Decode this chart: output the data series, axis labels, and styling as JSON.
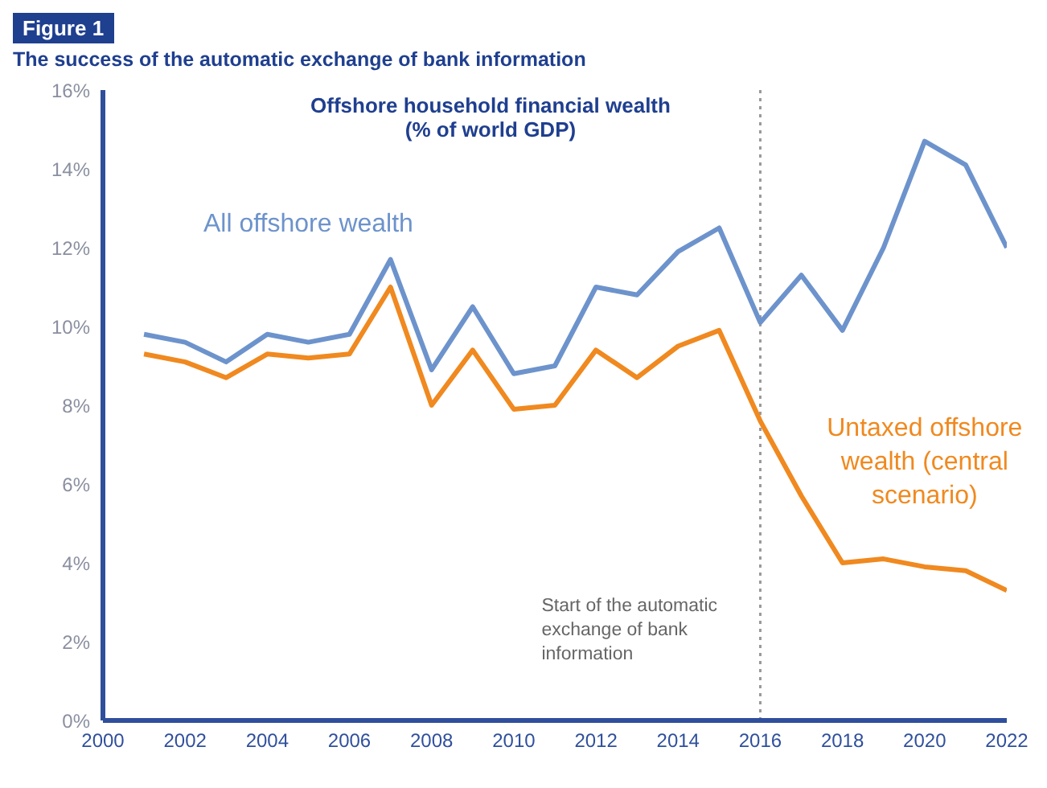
{
  "chart_data": {
    "type": "line",
    "title": "The success of the automatic exchange of bank information",
    "subtitle": "Offshore household financial wealth\n(% of world GDP)",
    "annotations": [
      "Figure 1"
    ],
    "x": [
      2001,
      2002,
      2003,
      2004,
      2005,
      2006,
      2007,
      2008,
      2009,
      2010,
      2011,
      2012,
      2013,
      2014,
      2015,
      2016,
      2017,
      2018,
      2019,
      2020,
      2021,
      2022
    ],
    "series": [
      {
        "name": "All offshore wealth",
        "color": "#6d93cc",
        "values": [
          9.8,
          9.6,
          9.1,
          9.8,
          9.6,
          9.8,
          11.7,
          8.9,
          10.5,
          8.8,
          9.0,
          11.0,
          10.8,
          11.9,
          12.5,
          10.1,
          11.3,
          9.9,
          12.0,
          14.7,
          14.1,
          12.0
        ]
      },
      {
        "name": "Untaxed offshore wealth (central scenario)",
        "color": "#f0891f",
        "values": [
          9.3,
          9.1,
          8.7,
          9.3,
          9.2,
          9.3,
          11.0,
          8.0,
          9.4,
          7.9,
          8.0,
          9.4,
          8.7,
          9.5,
          9.9,
          7.6,
          5.7,
          4.0,
          4.1,
          3.9,
          3.8,
          3.3
        ]
      }
    ],
    "xlim": [
      2000,
      2022
    ],
    "xticks": [
      2000,
      2002,
      2004,
      2006,
      2008,
      2010,
      2012,
      2014,
      2016,
      2018,
      2020,
      2022
    ],
    "ylim": [
      0,
      16
    ],
    "yticks": [
      {
        "value": 0,
        "label": "0%"
      },
      {
        "value": 2,
        "label": "2%"
      },
      {
        "value": 4,
        "label": "4%"
      },
      {
        "value": 6,
        "label": "6%"
      },
      {
        "value": 8,
        "label": "8%"
      },
      {
        "value": 10,
        "label": "10%"
      },
      {
        "value": 12,
        "label": "12%"
      },
      {
        "value": 14,
        "label": "14%"
      },
      {
        "value": 16,
        "label": "16%"
      }
    ],
    "ref_lines": [
      {
        "axis": "x",
        "value": 2016,
        "label": "Start of the automatic exchange of bank information",
        "color": "#999999",
        "line_style": "dotted"
      }
    ],
    "marker": "none",
    "line_style": "solid"
  }
}
